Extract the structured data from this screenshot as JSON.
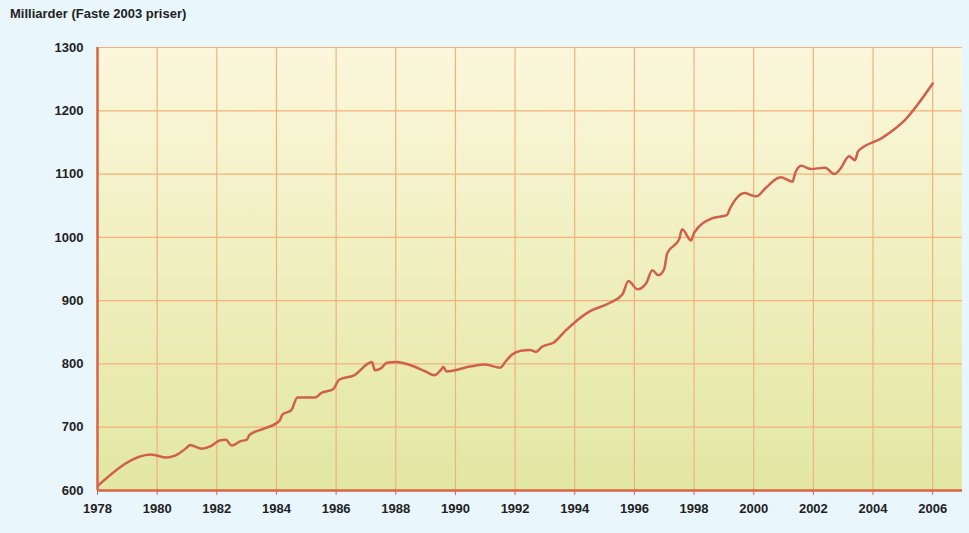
{
  "chart_data": {
    "type": "line",
    "title": "Milliarder  (Faste 2003 priser)",
    "x": [
      1978.0,
      1979.8,
      1980.3,
      1980.6,
      1981.0,
      1981.1,
      1981.5,
      1981.8,
      1982.1,
      1982.3,
      1982.5,
      1982.8,
      1983.0,
      1983.1,
      1983.6,
      1984.1,
      1984.2,
      1984.5,
      1984.7,
      1985.3,
      1985.5,
      1985.9,
      1986.1,
      1986.6,
      1987.2,
      1987.3,
      1987.5,
      1987.7,
      1988.0,
      1988.5,
      1989.0,
      1989.3,
      1989.5,
      1989.6,
      1989.7,
      1990.5,
      1991.0,
      1991.5,
      1991.7,
      1991.9,
      1992.2,
      1992.5,
      1992.7,
      1992.9,
      1993.3,
      1993.7,
      1994.5,
      1995.2,
      1995.6,
      1995.8,
      1996.1,
      1996.4,
      1996.6,
      1996.8,
      1997.0,
      1997.1,
      1997.5,
      1997.6,
      1997.9,
      1998.0,
      1998.6,
      1999.1,
      1999.2,
      1999.7,
      1999.9,
      2000.1,
      2000.4,
      2000.9,
      2001.3,
      2001.4,
      2001.6,
      2001.9,
      2002.4,
      2002.7,
      2002.9,
      2003.2,
      2003.4,
      2003.5,
      2004.3,
      2005.1,
      2006.0
    ],
    "values": [
      607,
      657,
      652,
      655,
      668,
      672,
      666,
      670,
      679,
      680,
      671,
      678,
      680,
      688,
      698,
      710,
      720,
      727,
      747,
      747,
      754,
      760,
      775,
      782,
      803,
      790,
      793,
      802,
      803,
      798,
      788,
      782,
      790,
      795,
      788,
      796,
      799,
      794,
      805,
      815,
      821,
      822,
      819,
      827,
      834,
      853,
      883,
      897,
      910,
      931,
      918,
      928,
      948,
      940,
      950,
      975,
      997,
      1013,
      995,
      1007,
      1030,
      1035,
      1045,
      1070,
      1067,
      1065,
      1078,
      1095,
      1088,
      1103,
      1113,
      1108,
      1110,
      1100,
      1108,
      1128,
      1122,
      1136,
      1157,
      1187,
      1243
    ],
    "color": "#d1604b",
    "xlim": [
      1978,
      2007
    ],
    "ylim": [
      600,
      1300
    ],
    "xticks": [
      1978,
      1980,
      1982,
      1984,
      1986,
      1988,
      1990,
      1992,
      1994,
      1996,
      1998,
      2000,
      2002,
      2004,
      2006
    ],
    "yticks": [
      600,
      700,
      800,
      900,
      1000,
      1100,
      1200,
      1300
    ],
    "grid": true
  }
}
